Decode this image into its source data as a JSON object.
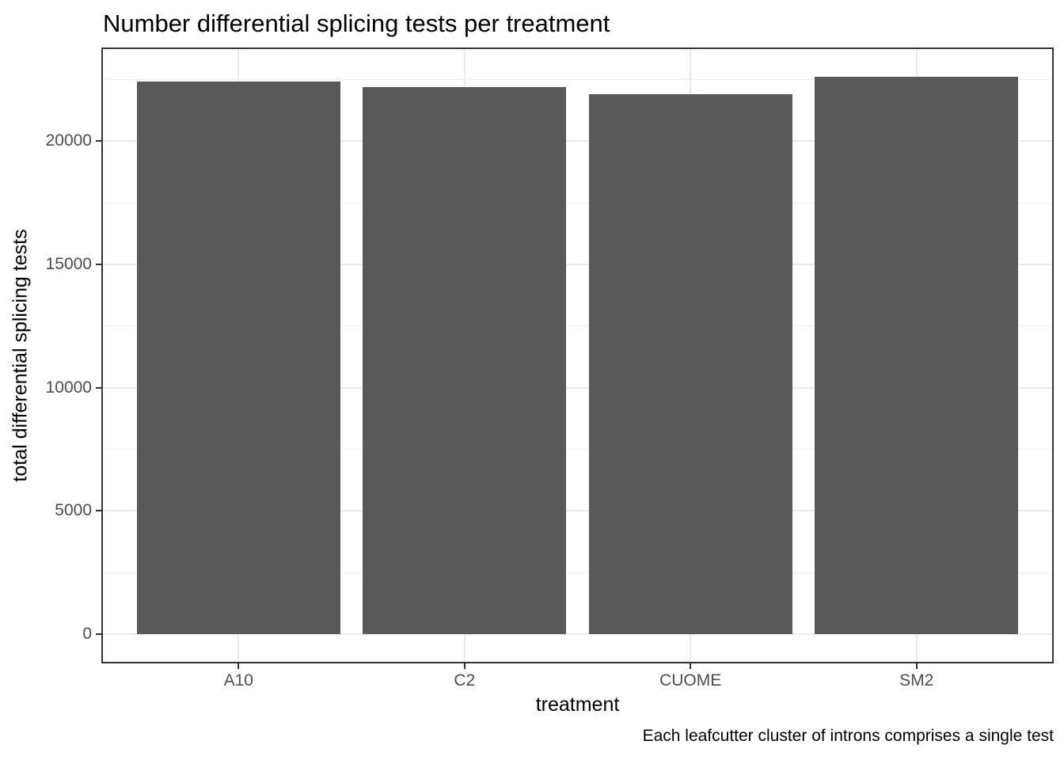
{
  "chart_data": {
    "type": "bar",
    "title": "Number differential splicing tests per treatment",
    "xlabel": "treatment",
    "ylabel": "total differential splicing tests",
    "caption": "Each leafcutter cluster of introns comprises a single test",
    "categories": [
      "A10",
      "C2",
      "CUOME",
      "SM2"
    ],
    "values": [
      22400,
      22200,
      21900,
      22600
    ],
    "y_ticks": [
      0,
      5000,
      10000,
      15000,
      20000
    ],
    "y_minor_ticks": [
      2500,
      7500,
      12500,
      17500,
      22500
    ],
    "ylim": [
      -1130,
      23730
    ],
    "x_slot_range": [
      0.4,
      4.6
    ],
    "bar_rel_width": 0.9,
    "grid": "horizontal major+minor, vertical major at category centers",
    "legend": "none",
    "colors": {
      "bar_fill": "#595959",
      "panel_border": "#333333",
      "grid_major": "#ebebeb",
      "grid_minor": "#f2f2f2",
      "tick_mark": "#333333",
      "tick_label": "#4d4d4d",
      "text": "#000000",
      "background": "#ffffff"
    }
  }
}
